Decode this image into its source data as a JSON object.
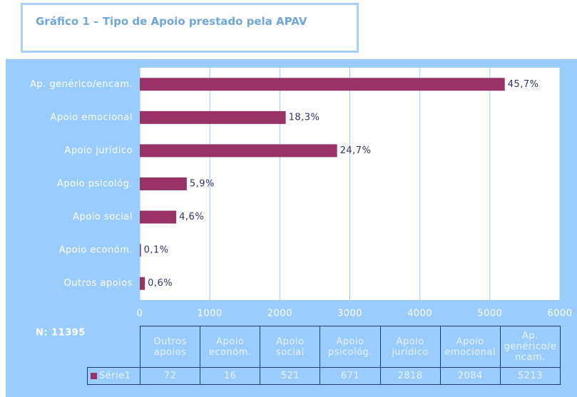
{
  "chart_data": {
    "type": "bar",
    "orientation": "horizontal",
    "title": "Gráfico 1 – Tipo de Apoio prestado pela APAV",
    "categories": [
      "Ap. genérico/encam.",
      "Apoio emocional",
      "Apoio jurídico",
      "Apoio psicológ.",
      "Apoio social",
      "Apoio económ.",
      "Outros apoios"
    ],
    "values": [
      5213,
      2084,
      2818,
      671,
      521,
      16,
      72
    ],
    "data_labels": [
      "45,7%",
      "18,3%",
      "24,7%",
      "5,9%",
      "4,6%",
      "0,1%",
      "0,6%"
    ],
    "series_name": "Série1",
    "color": "#993366",
    "xlim": [
      0,
      6000
    ],
    "xticks": [
      0,
      1000,
      2000,
      3000,
      4000,
      5000,
      6000
    ],
    "grid": true,
    "note": "N: 11395"
  }
}
